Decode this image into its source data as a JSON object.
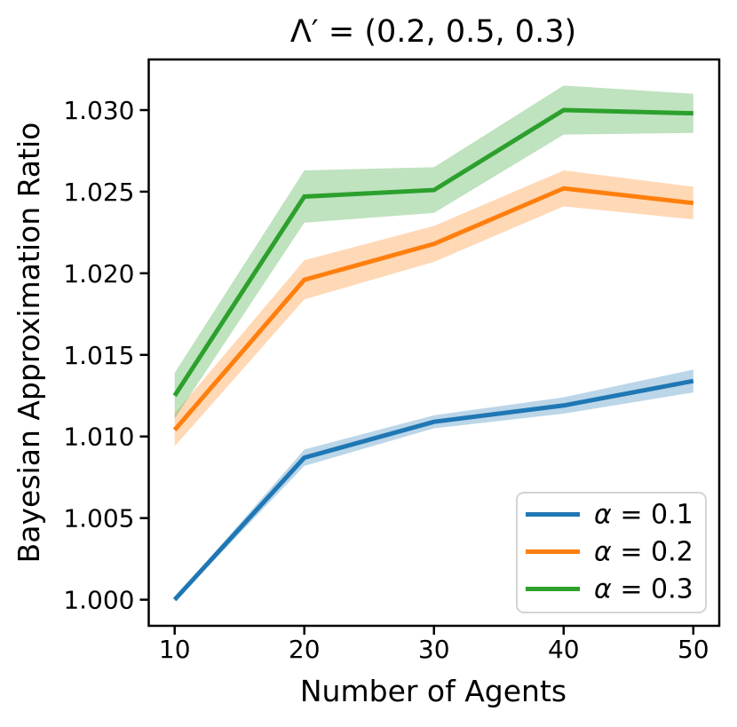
{
  "chart_data": {
    "type": "line",
    "title": "Λ′ = (0.2, 0.5, 0.3)",
    "xlabel": "Number of Agents",
    "ylabel": "Bayesian Approximation Ratio",
    "x": [
      10,
      20,
      30,
      40,
      50
    ],
    "xlim": [
      8,
      52
    ],
    "ylim": [
      0.9984,
      1.0331
    ],
    "grid": false,
    "background": "#ffffff",
    "spine_color": "#000000",
    "xticks": {
      "values": [
        10,
        20,
        30,
        40,
        50
      ],
      "labels": [
        "10",
        "20",
        "30",
        "40",
        "50"
      ]
    },
    "yticks": {
      "values": [
        1.0,
        1.005,
        1.01,
        1.015,
        1.02,
        1.025,
        1.03
      ],
      "labels": [
        "1.000",
        "1.005",
        "1.010",
        "1.015",
        "1.020",
        "1.025",
        "1.030"
      ]
    },
    "series": [
      {
        "name": "α = 0.1",
        "color": "#1f77b4",
        "values": [
          1.0,
          1.0087,
          1.0109,
          1.0119,
          1.0134
        ],
        "band_halfwidth": [
          0.0001,
          0.0005,
          0.0004,
          0.0005,
          0.0007
        ],
        "band_alpha": 0.3
      },
      {
        "name": "α = 0.2",
        "color": "#ff7f0e",
        "values": [
          1.0104,
          1.0196,
          1.0218,
          1.0252,
          1.0243
        ],
        "band_halfwidth": [
          0.001,
          0.0012,
          0.0011,
          0.0011,
          0.001
        ],
        "band_alpha": 0.3
      },
      {
        "name": "α = 0.3",
        "color": "#2ca02c",
        "values": [
          1.0125,
          1.0247,
          1.0251,
          1.03,
          1.0298
        ],
        "band_halfwidth": [
          0.0014,
          0.0016,
          0.0014,
          0.0015,
          0.0012
        ],
        "band_alpha": 0.3
      }
    ],
    "legend": {
      "position": "lower right",
      "entries": [
        "α = 0.1",
        "α = 0.2",
        "α = 0.3"
      ],
      "frame_color": "#d4d4d4",
      "frame_fill": "#ffffff"
    }
  }
}
